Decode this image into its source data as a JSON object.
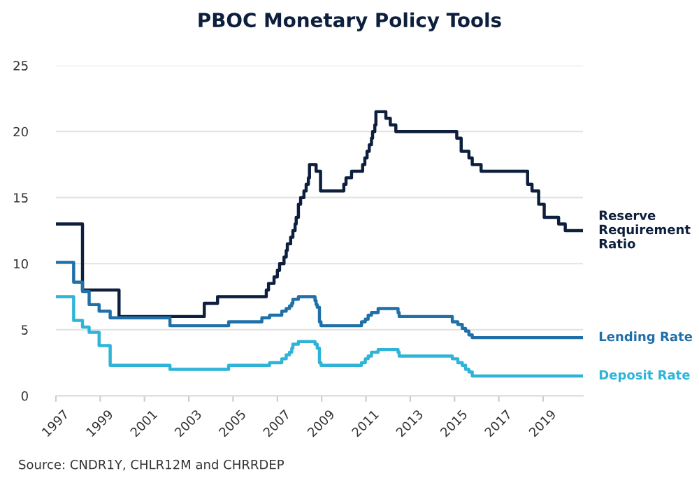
{
  "chart_data": {
    "type": "step",
    "title": "PBOC Monetary Policy Tools",
    "annotations": [
      "Source: CNDR1Y, CHLR12M and CHRRDEP"
    ],
    "xlim": [
      1997,
      2020.8
    ],
    "xticks": [
      1997,
      1999,
      2001,
      2003,
      2005,
      2007,
      2009,
      2011,
      2013,
      2015,
      2017,
      2019
    ],
    "ylim": [
      0,
      25
    ],
    "yticks": [
      0,
      5,
      10,
      15,
      20,
      25
    ],
    "grid": "y",
    "legend": false,
    "series": [
      {
        "name": "Reserve\nRequirement\nRatio",
        "color": "#0d1f3c",
        "x": [
          1997,
          1998.2,
          1999.85,
          2003.7,
          2004.3,
          2006.5,
          2006.6,
          2006.85,
          2007.0,
          2007.1,
          2007.3,
          2007.4,
          2007.45,
          2007.6,
          2007.7,
          2007.8,
          2007.85,
          2007.95,
          2008.05,
          2008.2,
          2008.3,
          2008.4,
          2008.45,
          2008.75,
          2008.95,
          2010.0,
          2010.1,
          2010.35,
          2010.85,
          2010.95,
          2011.05,
          2011.15,
          2011.25,
          2011.3,
          2011.4,
          2011.45,
          2011.9,
          2012.1,
          2012.35,
          2015.1,
          2015.3,
          2015.65,
          2015.8,
          2016.2,
          2018.3,
          2018.5,
          2018.8,
          2019.05,
          2019.7,
          2020.0,
          2020.8
        ],
        "values": [
          13,
          8,
          6,
          7,
          7.5,
          8,
          8.5,
          9,
          9.5,
          10,
          10.5,
          11,
          11.5,
          12,
          12.5,
          13,
          13.5,
          14.5,
          15,
          15.5,
          16,
          16.5,
          17.5,
          17,
          15.5,
          16,
          16.5,
          17,
          17.5,
          18,
          18.5,
          19,
          19.5,
          20,
          20.5,
          21.5,
          21,
          20.5,
          20,
          19.5,
          18.5,
          18,
          17.5,
          17,
          16,
          15.5,
          14.5,
          13.5,
          13,
          12.5,
          12.5
        ]
      },
      {
        "name": "Lending Rate",
        "color": "#1f6fa8",
        "x": [
          1997,
          1997.8,
          1998.2,
          1998.5,
          1998.95,
          1999.45,
          2002.15,
          2004.8,
          2006.3,
          2006.65,
          2007.2,
          2007.4,
          2007.55,
          2007.65,
          2007.7,
          2007.95,
          2008.7,
          2008.75,
          2008.8,
          2008.9,
          2008.97,
          2010.8,
          2010.97,
          2011.1,
          2011.25,
          2011.55,
          2012.45,
          2012.5,
          2014.9,
          2015.15,
          2015.35,
          2015.5,
          2015.65,
          2015.8,
          2020.8
        ],
        "values": [
          10.1,
          8.6,
          7.9,
          6.9,
          6.4,
          5.9,
          5.3,
          5.6,
          5.9,
          6.1,
          6.4,
          6.6,
          6.8,
          7.0,
          7.3,
          7.5,
          7.2,
          6.9,
          6.7,
          5.6,
          5.3,
          5.6,
          5.8,
          6.1,
          6.3,
          6.6,
          6.3,
          6.0,
          5.6,
          5.4,
          5.1,
          4.9,
          4.6,
          4.4,
          4.4
        ]
      },
      {
        "name": "Deposit Rate",
        "color": "#2fb4d8",
        "x": [
          1997,
          1997.8,
          1998.2,
          1998.5,
          1998.95,
          1999.45,
          2002.15,
          2004.8,
          2006.65,
          2007.2,
          2007.4,
          2007.55,
          2007.65,
          2007.7,
          2007.95,
          2008.7,
          2008.8,
          2008.9,
          2008.97,
          2010.8,
          2010.97,
          2011.1,
          2011.25,
          2011.55,
          2012.45,
          2012.5,
          2014.9,
          2015.15,
          2015.35,
          2015.5,
          2015.65,
          2015.8,
          2020.8
        ],
        "values": [
          7.5,
          5.7,
          5.2,
          4.8,
          3.8,
          2.3,
          2.0,
          2.3,
          2.5,
          2.8,
          3.1,
          3.3,
          3.6,
          3.9,
          4.1,
          3.9,
          3.6,
          2.5,
          2.3,
          2.5,
          2.8,
          3.0,
          3.3,
          3.5,
          3.3,
          3.0,
          2.8,
          2.5,
          2.3,
          2.0,
          1.8,
          1.5,
          1.5
        ]
      }
    ]
  }
}
